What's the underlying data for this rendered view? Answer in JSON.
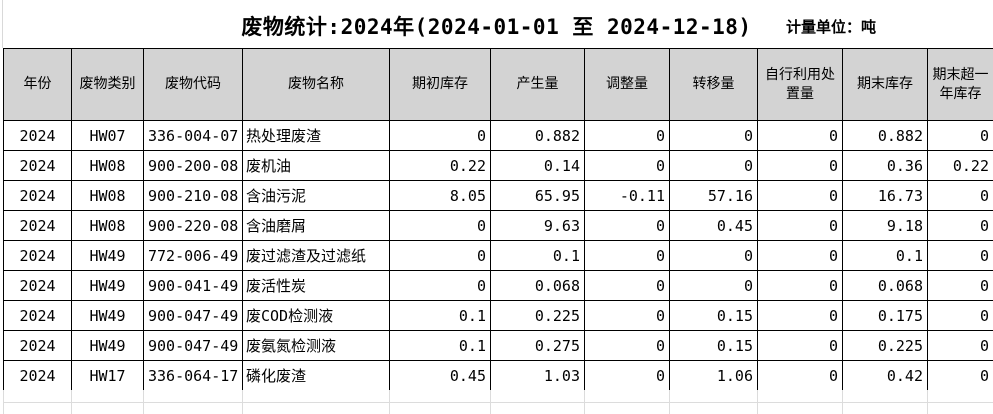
{
  "header": {
    "title": "废物统计:2024年(2024-01-01 至 2024-12-18)",
    "unit_label": "计量单位：吨"
  },
  "table": {
    "columns": [
      "年份",
      "废物类别",
      "废物代码",
      "废物名称",
      "期初库存",
      "产生量",
      "调整量",
      "转移量",
      "自行利用处置量",
      "期末库存",
      "期末超一年库存"
    ],
    "rows": [
      [
        "2024",
        "HW07",
        "336-004-07",
        "热处理废渣",
        "0",
        "0.882",
        "0",
        "0",
        "0",
        "0.882",
        "0"
      ],
      [
        "2024",
        "HW08",
        "900-200-08",
        "废机油",
        "0.22",
        "0.14",
        "0",
        "0",
        "0",
        "0.36",
        "0.22"
      ],
      [
        "2024",
        "HW08",
        "900-210-08",
        "含油污泥",
        "8.05",
        "65.95",
        "-0.11",
        "57.16",
        "0",
        "16.73",
        "0"
      ],
      [
        "2024",
        "HW08",
        "900-220-08",
        "含油磨屑",
        "0",
        "9.63",
        "0",
        "0.45",
        "0",
        "9.18",
        "0"
      ],
      [
        "2024",
        "HW49",
        "772-006-49",
        "废过滤渣及过滤纸",
        "0",
        "0.1",
        "0",
        "0",
        "0",
        "0.1",
        "0"
      ],
      [
        "2024",
        "HW49",
        "900-041-49",
        "废活性炭",
        "0",
        "0.068",
        "0",
        "0",
        "0",
        "0.068",
        "0"
      ],
      [
        "2024",
        "HW49",
        "900-047-49",
        "废COD检测液",
        "0.1",
        "0.225",
        "0",
        "0.15",
        "0",
        "0.175",
        "0"
      ],
      [
        "2024",
        "HW49",
        "900-047-49",
        "废氨氮检测液",
        "0.1",
        "0.275",
        "0",
        "0.15",
        "0",
        "0.225",
        "0"
      ],
      [
        "2024",
        "HW17",
        "336-064-17",
        "磷化废渣",
        "0.45",
        "1.03",
        "0",
        "1.06",
        "0",
        "0.42",
        "0"
      ]
    ]
  },
  "colors": {
    "header_bg": "#d3d3d3",
    "table_border": "#000000",
    "light_grid": "#dcdcdc",
    "text": "#000000",
    "background": "#ffffff"
  }
}
